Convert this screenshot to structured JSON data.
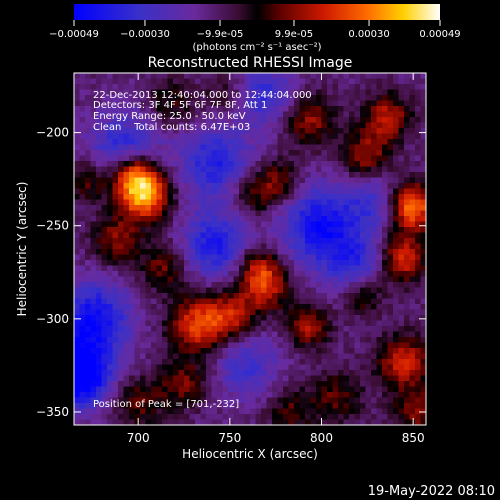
{
  "chart_data": {
    "type": "heatmap",
    "title": "Reconstructed RHESSI Image",
    "xlabel": "Heliocentric X (arcsec)",
    "ylabel": "Heliocentric Y (arcsec)",
    "xlim": [
      665,
      857
    ],
    "ylim": [
      -357,
      -168
    ],
    "xticks": [
      700,
      750,
      800,
      850
    ],
    "yticks": [
      -200,
      -250,
      -300,
      -350
    ],
    "colorbar": {
      "min": -0.00049,
      "max": 0.00049,
      "ticks": [
        -0.00049,
        -0.0003,
        -9.9e-05,
        9.9e-05,
        0.0003,
        0.00049
      ],
      "tick_labels": [
        "-0.00049",
        "-0.00030",
        "-9.9e-05",
        "9.9e-05",
        "0.00030",
        "0.00049"
      ],
      "unit_label": "(photons cm⁻² s⁻¹ asec⁻²)"
    },
    "info_lines": [
      "22-Dec-2013 12:40:04.000 to 12:44:04.000",
      "Detectors: 3F 4F 5F 6F 7F 8F, Att 1",
      "Energy Range: 25.0 - 50.0 keV",
      "Clean    Total counts: 6.47E+03"
    ],
    "peak_label": "Position of Peak = [701,-232]",
    "peak": [
      701,
      -232
    ],
    "sources": [
      {
        "x": 703,
        "y": -233,
        "amp": 0.00049,
        "r": 10
      },
      {
        "x": 697,
        "y": -222,
        "amp": 0.0003,
        "r": 8
      },
      {
        "x": 688,
        "y": -258,
        "amp": 0.00022,
        "r": 9
      },
      {
        "x": 714,
        "y": -272,
        "amp": 0.0002,
        "r": 9
      },
      {
        "x": 733,
        "y": -303,
        "amp": 0.00035,
        "r": 11
      },
      {
        "x": 752,
        "y": -298,
        "amp": 0.00025,
        "r": 9
      },
      {
        "x": 770,
        "y": -283,
        "amp": 0.00028,
        "r": 9
      },
      {
        "x": 765,
        "y": -272,
        "amp": 0.00022,
        "r": 8
      },
      {
        "x": 793,
        "y": -304,
        "amp": 0.00026,
        "r": 8
      },
      {
        "x": 725,
        "y": -335,
        "amp": 0.0002,
        "r": 9
      },
      {
        "x": 700,
        "y": -345,
        "amp": 0.00018,
        "r": 10
      },
      {
        "x": 718,
        "y": -184,
        "amp": 0.00015,
        "r": 9
      },
      {
        "x": 748,
        "y": -180,
        "amp": 0.00012,
        "r": 8
      },
      {
        "x": 793,
        "y": -193,
        "amp": 0.00024,
        "r": 10
      },
      {
        "x": 777,
        "y": -226,
        "amp": 0.0002,
        "r": 8
      },
      {
        "x": 763,
        "y": -233,
        "amp": 0.00018,
        "r": 9
      },
      {
        "x": 824,
        "y": -212,
        "amp": 0.00024,
        "r": 9
      },
      {
        "x": 836,
        "y": -192,
        "amp": 0.00028,
        "r": 9
      },
      {
        "x": 849,
        "y": -240,
        "amp": 0.00044,
        "r": 9
      },
      {
        "x": 844,
        "y": -268,
        "amp": 0.00033,
        "r": 9
      },
      {
        "x": 823,
        "y": -287,
        "amp": 0.00022,
        "r": 8
      },
      {
        "x": 845,
        "y": -323,
        "amp": 0.0003,
        "r": 10
      },
      {
        "x": 852,
        "y": -350,
        "amp": 0.00022,
        "r": 9
      },
      {
        "x": 808,
        "y": -342,
        "amp": 0.00018,
        "r": 10
      },
      {
        "x": 783,
        "y": -350,
        "amp": 0.00016,
        "r": 9
      },
      {
        "x": 672,
        "y": -226,
        "amp": 0.00018,
        "r": 8
      },
      {
        "x": 676,
        "y": -300,
        "amp": -0.00033,
        "r": 14
      },
      {
        "x": 692,
        "y": -207,
        "amp": -0.00024,
        "r": 13
      },
      {
        "x": 742,
        "y": -216,
        "amp": -0.00026,
        "r": 14
      },
      {
        "x": 742,
        "y": -260,
        "amp": -0.00028,
        "r": 13
      },
      {
        "x": 800,
        "y": -250,
        "amp": -0.00033,
        "r": 15
      },
      {
        "x": 820,
        "y": -272,
        "amp": -0.00022,
        "r": 12
      },
      {
        "x": 668,
        "y": -330,
        "amp": -0.00049,
        "r": 12
      },
      {
        "x": 759,
        "y": -325,
        "amp": -0.0002,
        "r": 12
      },
      {
        "x": 770,
        "y": -180,
        "amp": -0.00022,
        "r": 12
      },
      {
        "x": 830,
        "y": -237,
        "amp": -0.00018,
        "r": 10
      }
    ]
  },
  "footer": {
    "timestamp": "19-May-2022 08:10"
  }
}
